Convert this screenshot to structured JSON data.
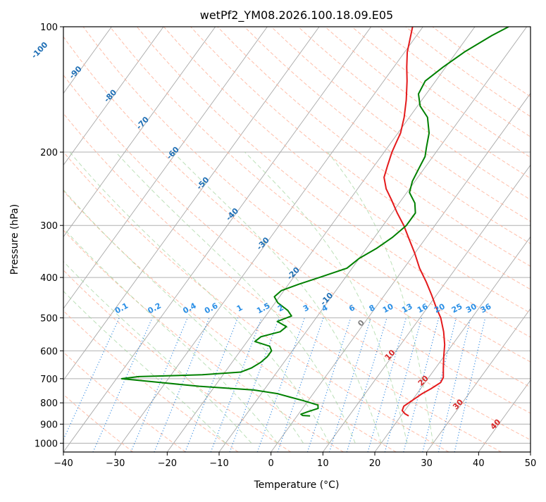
{
  "chart_data": {
    "type": "skew-t log-p",
    "title": "wetPf2_YM08.2026.100.18.09.E05",
    "xlabel": "Temperature (°C)",
    "ylabel": "Pressure (hPa)",
    "xlim": [
      -40,
      50
    ],
    "ylim": [
      1050,
      100
    ],
    "x_ticks": [
      -40,
      -30,
      -20,
      -10,
      0,
      10,
      20,
      30,
      40,
      50
    ],
    "x_tick_labels": [
      "−40",
      "−30",
      "−20",
      "−10",
      "0",
      "10",
      "20",
      "30",
      "40",
      "50"
    ],
    "y_ticks": [
      1000,
      900,
      800,
      700,
      600,
      500,
      400,
      300,
      200,
      100
    ],
    "y_tick_labels": [
      "1000",
      "900",
      "800",
      "700",
      "600",
      "500",
      "400",
      "300",
      "200",
      "100"
    ],
    "mixing_ratio_labels": [
      "0.1",
      "0.2",
      "0.4",
      "0.6",
      "1",
      "1.5",
      "2",
      "3",
      "4",
      "6",
      "8",
      "10",
      "13",
      "16",
      "20",
      "25",
      "30",
      "36"
    ],
    "isotherm_labels_negative": [
      "-100",
      "-90",
      "-80",
      "-70",
      "-60",
      "-50",
      "-40",
      "-30",
      "-20",
      "-10"
    ],
    "isotherm_labels_positive": [
      "0",
      "10",
      "20",
      "30",
      "40"
    ],
    "series": [
      {
        "name": "Temperature",
        "color": "#e41a1c",
        "points": [
          {
            "p": 860,
            "t": 21.5
          },
          {
            "p": 850,
            "t": 20.5
          },
          {
            "p": 835,
            "t": 19.5
          },
          {
            "p": 815,
            "t": 19.2
          },
          {
            "p": 790,
            "t": 20.0
          },
          {
            "p": 760,
            "t": 21.0
          },
          {
            "p": 740,
            "t": 22.0
          },
          {
            "p": 715,
            "t": 23.0
          },
          {
            "p": 695,
            "t": 22.8
          },
          {
            "p": 660,
            "t": 21.5
          },
          {
            "p": 620,
            "t": 20.0
          },
          {
            "p": 580,
            "t": 18.5
          },
          {
            "p": 540,
            "t": 16.5
          },
          {
            "p": 500,
            "t": 14.0
          },
          {
            "p": 470,
            "t": 11.5
          },
          {
            "p": 440,
            "t": 9.0
          },
          {
            "p": 410,
            "t": 6.2
          },
          {
            "p": 380,
            "t": 3.0
          },
          {
            "p": 350,
            "t": 0.0
          },
          {
            "p": 320,
            "t": -3.5
          },
          {
            "p": 300,
            "t": -6.0
          },
          {
            "p": 280,
            "t": -9.0
          },
          {
            "p": 260,
            "t": -12.0
          },
          {
            "p": 245,
            "t": -14.5
          },
          {
            "p": 230,
            "t": -16.5
          },
          {
            "p": 215,
            "t": -17.5
          },
          {
            "p": 200,
            "t": -18.5
          },
          {
            "p": 190,
            "t": -19.0
          },
          {
            "p": 180,
            "t": -19.5
          },
          {
            "p": 165,
            "t": -21.0
          },
          {
            "p": 150,
            "t": -23.0
          },
          {
            "p": 135,
            "t": -25.5
          },
          {
            "p": 125,
            "t": -27.5
          },
          {
            "p": 115,
            "t": -29.5
          },
          {
            "p": 100,
            "t": -32.0
          }
        ]
      },
      {
        "name": "Dewpoint",
        "color": "#008000",
        "points": [
          {
            "p": 860,
            "t": 2.5
          },
          {
            "p": 858,
            "t": 1.0
          },
          {
            "p": 852,
            "t": 0.5
          },
          {
            "p": 840,
            "t": 1.5
          },
          {
            "p": 825,
            "t": 3.0
          },
          {
            "p": 810,
            "t": 2.5
          },
          {
            "p": 790,
            "t": -1.0
          },
          {
            "p": 775,
            "t": -4.0
          },
          {
            "p": 760,
            "t": -7.0
          },
          {
            "p": 745,
            "t": -12.0
          },
          {
            "p": 730,
            "t": -23.0
          },
          {
            "p": 715,
            "t": -31.0
          },
          {
            "p": 700,
            "t": -39.0
          },
          {
            "p": 692,
            "t": -36.0
          },
          {
            "p": 685,
            "t": -24.0
          },
          {
            "p": 675,
            "t": -17.0
          },
          {
            "p": 660,
            "t": -15.5
          },
          {
            "p": 640,
            "t": -14.5
          },
          {
            "p": 620,
            "t": -14.0
          },
          {
            "p": 600,
            "t": -14.0
          },
          {
            "p": 585,
            "t": -15.0
          },
          {
            "p": 570,
            "t": -18.5
          },
          {
            "p": 555,
            "t": -18.0
          },
          {
            "p": 540,
            "t": -15.0
          },
          {
            "p": 525,
            "t": -14.5
          },
          {
            "p": 510,
            "t": -17.0
          },
          {
            "p": 495,
            "t": -15.0
          },
          {
            "p": 480,
            "t": -16.5
          },
          {
            "p": 460,
            "t": -19.5
          },
          {
            "p": 445,
            "t": -21.0
          },
          {
            "p": 430,
            "t": -20.5
          },
          {
            "p": 415,
            "t": -18.0
          },
          {
            "p": 400,
            "t": -15.0
          },
          {
            "p": 380,
            "t": -11.0
          },
          {
            "p": 360,
            "t": -10.0
          },
          {
            "p": 340,
            "t": -8.0
          },
          {
            "p": 320,
            "t": -6.5
          },
          {
            "p": 300,
            "t": -5.5
          },
          {
            "p": 280,
            "t": -5.5
          },
          {
            "p": 265,
            "t": -7.0
          },
          {
            "p": 250,
            "t": -9.5
          },
          {
            "p": 235,
            "t": -10.5
          },
          {
            "p": 220,
            "t": -11.0
          },
          {
            "p": 205,
            "t": -11.5
          },
          {
            "p": 195,
            "t": -12.5
          },
          {
            "p": 180,
            "t": -14.0
          },
          {
            "p": 165,
            "t": -16.5
          },
          {
            "p": 155,
            "t": -19.5
          },
          {
            "p": 145,
            "t": -21.5
          },
          {
            "p": 135,
            "t": -22.0
          },
          {
            "p": 125,
            "t": -20.5
          },
          {
            "p": 115,
            "t": -18.5
          },
          {
            "p": 105,
            "t": -15.5
          },
          {
            "p": 100,
            "t": -13.5
          }
        ]
      }
    ]
  }
}
